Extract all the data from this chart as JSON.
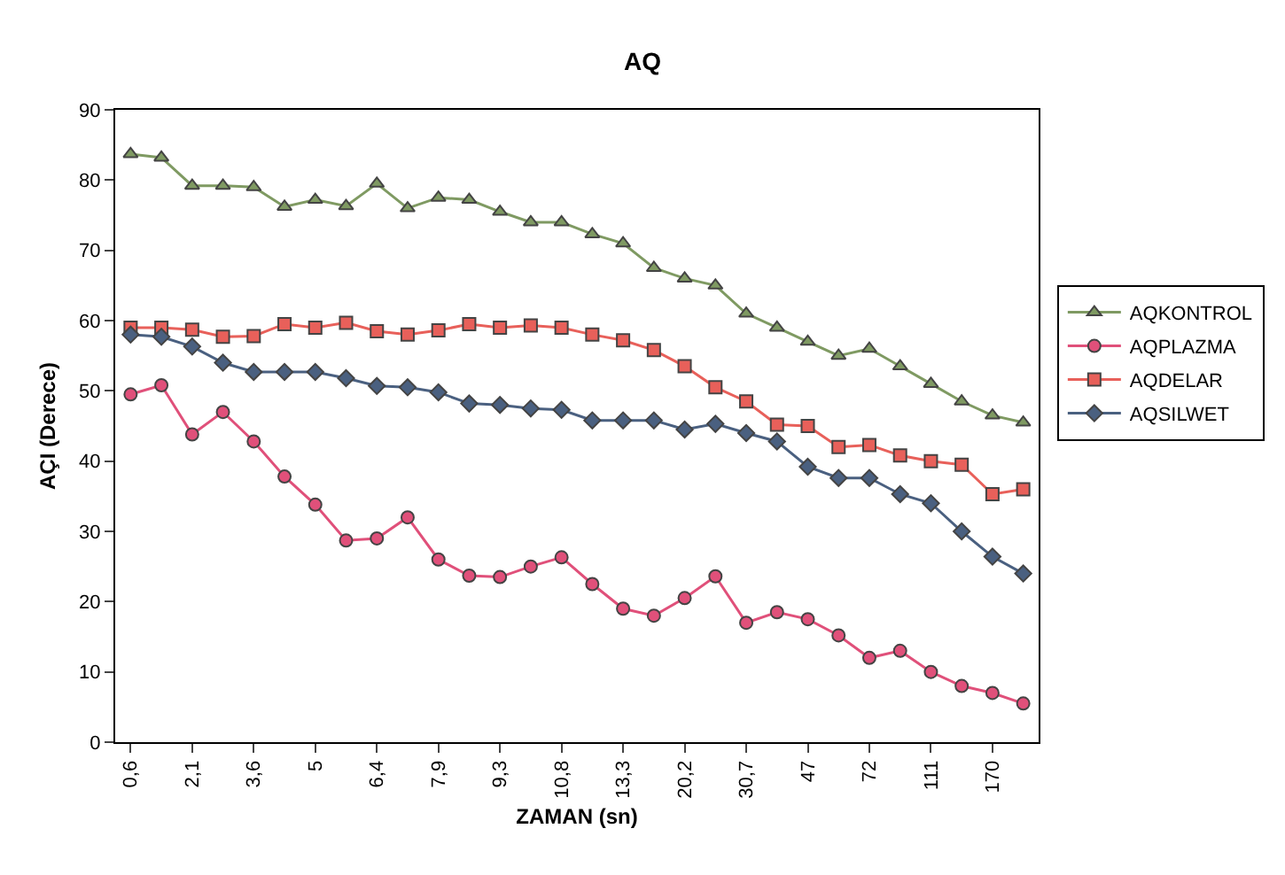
{
  "chart_data": {
    "type": "line",
    "title": "AQ",
    "xlabel": "ZAMAN (sn)",
    "ylabel": "AÇI (Derece)",
    "categories": [
      "0,6",
      null,
      "2,1",
      null,
      "3,6",
      null,
      "5",
      null,
      "6,4",
      null,
      "7,9",
      null,
      "9,3",
      null,
      "10,8",
      null,
      "13,3",
      null,
      "20,2",
      null,
      "30,7",
      null,
      "47",
      null,
      "72",
      null,
      "111",
      null,
      "170",
      null
    ],
    "ylim": [
      0,
      90
    ],
    "yticks": [
      0,
      10,
      20,
      30,
      40,
      50,
      60,
      70,
      80,
      90
    ],
    "grid": false,
    "legend": "right",
    "series": [
      {
        "name": "AQKONTROL",
        "color": "#7f9a62",
        "marker": "triangle",
        "values": [
          83.7,
          83.2,
          79.2,
          79.2,
          79,
          76.2,
          77.2,
          76.3,
          79.5,
          76,
          77.5,
          77.2,
          75.5,
          74,
          74,
          72.3,
          71,
          67.5,
          66,
          65,
          61,
          59,
          57,
          55,
          56,
          53.5,
          51,
          48.5,
          46.5,
          45.5
        ]
      },
      {
        "name": "AQPLAZMA",
        "color": "#e0507a",
        "marker": "circle",
        "values": [
          49.5,
          50.8,
          43.8,
          47,
          42.8,
          37.8,
          33.8,
          28.7,
          29,
          32,
          26,
          23.7,
          23.5,
          25,
          26.3,
          22.5,
          19,
          18,
          20.5,
          23.6,
          17,
          18.5,
          17.5,
          15.2,
          12,
          13,
          10,
          8,
          7,
          5.5
        ]
      },
      {
        "name": "AQDELAR",
        "color": "#e8605a",
        "marker": "square",
        "values": [
          59,
          59,
          58.7,
          57.7,
          57.8,
          59.5,
          59,
          59.7,
          58.5,
          58,
          58.6,
          59.5,
          59,
          59.3,
          59,
          58,
          57.2,
          55.8,
          53.5,
          50.5,
          48.5,
          45.2,
          45,
          42,
          42.3,
          40.8,
          40,
          39.5,
          35.3,
          36
        ]
      },
      {
        "name": "AQSILWET",
        "color": "#4a6080",
        "marker": "diamond",
        "values": [
          58,
          57.7,
          56.3,
          54,
          52.7,
          52.7,
          52.7,
          51.8,
          50.7,
          50.5,
          49.8,
          48.2,
          48,
          47.5,
          47.3,
          45.8,
          45.8,
          45.8,
          44.5,
          45.3,
          44,
          42.8,
          39.2,
          37.6,
          37.6,
          35.3,
          34,
          30,
          26.4,
          24
        ]
      }
    ]
  }
}
